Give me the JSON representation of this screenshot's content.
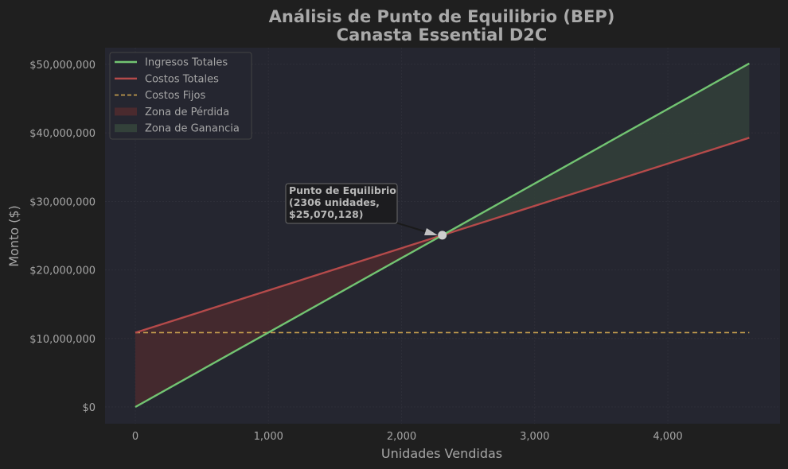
{
  "chart_data": {
    "type": "line",
    "title": "Análisis de Punto de Equilibrio (BEP)",
    "subtitle": "Canasta Essential D2C",
    "title_lines": [
      "Análisis de Punto de Equilibrio (BEP)",
      "Canasta Essential D2C"
    ],
    "xlabel": "Unidades Vendidas",
    "ylabel": "Monto ($)",
    "xlim": [
      -230,
      4840
    ],
    "ylim": [
      -2500000,
      53000000
    ],
    "x_ticks": [
      0,
      1000,
      2000,
      3000,
      4000
    ],
    "x_tick_labels": [
      "0",
      "1,000",
      "2,000",
      "3,000",
      "4,000"
    ],
    "y_ticks": [
      0,
      10000000,
      20000000,
      30000000,
      40000000,
      50000000
    ],
    "y_tick_labels": [
      "$0",
      "$10,000,000",
      "$20,000,000",
      "$30,000,000",
      "$40,000,000",
      "$50,000,000"
    ],
    "grid": true,
    "legend_position": "upper left",
    "x": [
      0,
      2306,
      4612
    ],
    "series": [
      {
        "name": "Ingresos Totales",
        "color": "#72c472",
        "style": "solid",
        "values": [
          0,
          25070128,
          50140256
        ]
      },
      {
        "name": "Costos Totales",
        "color": "#b54a4a",
        "style": "solid",
        "values": [
          10850000,
          25070128,
          39290256
        ]
      },
      {
        "name": "Costos Fijos",
        "color": "#c8a04e",
        "style": "dashed",
        "values": [
          10850000,
          10850000,
          10850000
        ]
      }
    ],
    "fills": [
      {
        "name": "Zona de Pérdida",
        "color": "#4a2a2e",
        "x_range": [
          0,
          2306
        ]
      },
      {
        "name": "Zona de Ganancia",
        "color": "#33413a",
        "x_range": [
          2306,
          4612
        ]
      }
    ],
    "break_even": {
      "units": 2306,
      "amount": 25070128
    },
    "annotation": {
      "lines": [
        "Punto de Equilibrio",
        "(2306 unidades,",
        "$25,070,128)"
      ]
    }
  },
  "legend": [
    {
      "label": "Ingresos Totales",
      "kind": "line",
      "color": "#72c472"
    },
    {
      "label": "Costos Totales",
      "kind": "line",
      "color": "#b54a4a"
    },
    {
      "label": "Costos Fijos",
      "kind": "dash",
      "color": "#c8a04e"
    },
    {
      "label": "Zona de Pérdida",
      "kind": "patch",
      "color": "#4a2a2e"
    },
    {
      "label": "Zona de Ganancia",
      "kind": "patch",
      "color": "#33413a"
    }
  ],
  "colors": {
    "figure_bg": "#1f1f1f",
    "axes_bg": "#252630",
    "text": "#a6a6a6"
  }
}
